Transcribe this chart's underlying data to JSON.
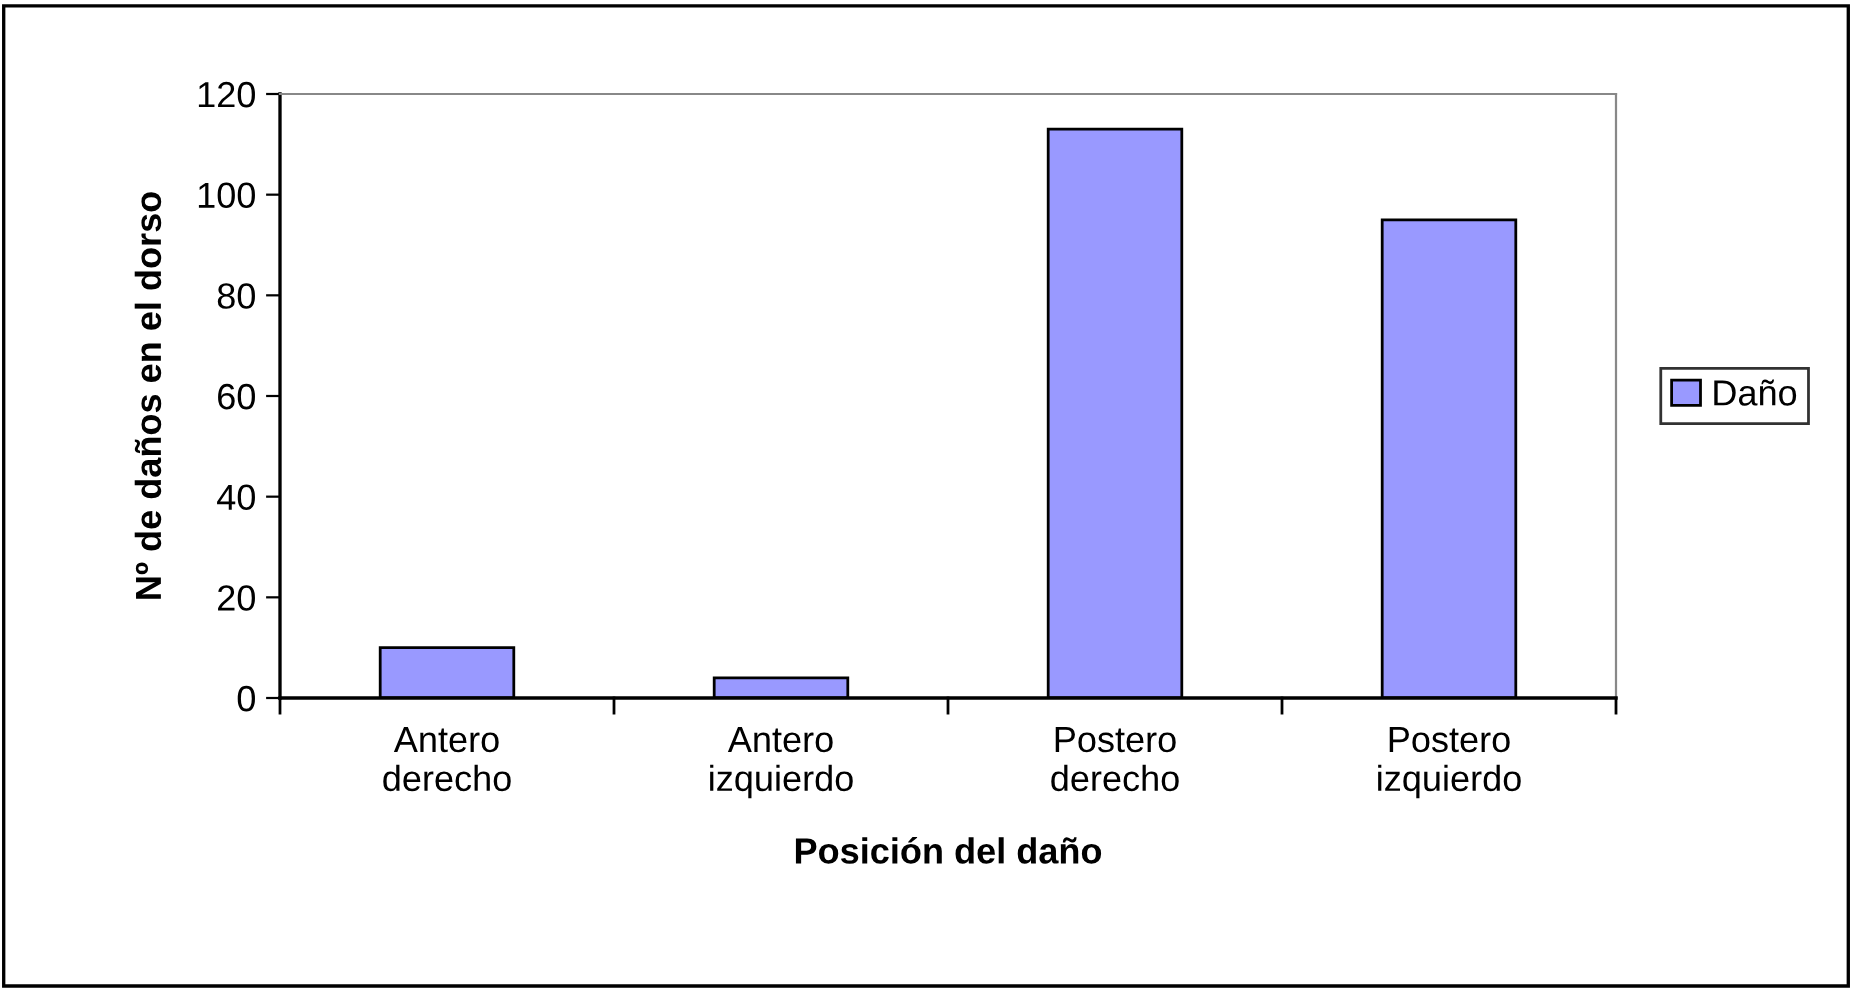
{
  "chart_data": {
    "type": "bar",
    "xlabel": "Posición del daño",
    "ylabel": "Nº de daños en el dorso",
    "categories": [
      "Antero\nderecho",
      "Antero\nizquierdo",
      "Postero\nderecho",
      "Postero\nizquierdo"
    ],
    "series": [
      {
        "name": "Daño",
        "color": "#9999ff",
        "values": [
          10,
          4,
          113,
          95
        ]
      }
    ],
    "ylim": [
      0,
      120
    ],
    "yticks": [
      0,
      20,
      40,
      60,
      80,
      100,
      120
    ],
    "grid": false,
    "legend": "right"
  }
}
